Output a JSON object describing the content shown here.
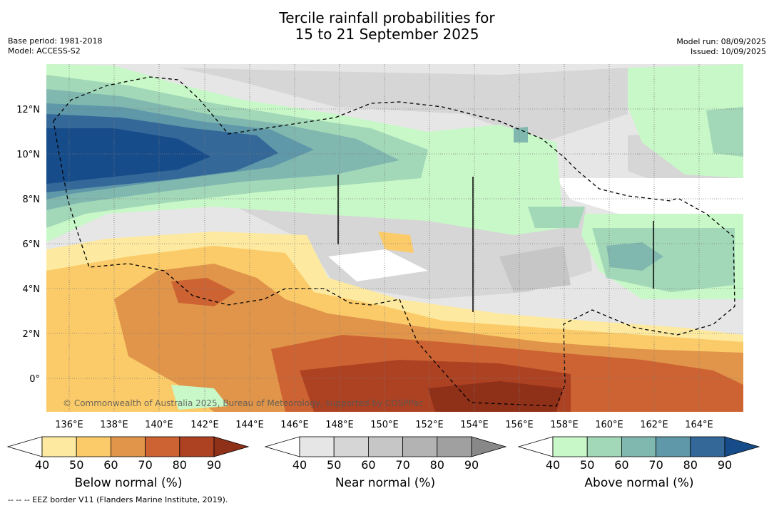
{
  "title": {
    "line1": "Tercile rainfall probabilities for",
    "line2": "15 to 21 September 2025"
  },
  "meta": {
    "base_period": "Base period: 1981-2018",
    "model": "Model: ACCESS-S2",
    "model_run": "Model run: 08/09/2025",
    "issued": "Issued: 10/09/2025"
  },
  "map": {
    "lon_labels": [
      "136°E",
      "138°E",
      "140°E",
      "142°E",
      "144°E",
      "146°E",
      "148°E",
      "150°E",
      "152°E",
      "154°E",
      "156°E",
      "158°E",
      "160°E",
      "162°E",
      "164°E"
    ],
    "lat_labels": [
      "12°N",
      "10°N",
      "8°N",
      "6°N",
      "4°N",
      "2°N",
      "0°"
    ],
    "copyright": "© Commonwealth of Australia 2025, Bureau of Meteorology, supported by COSPPac",
    "colors": {
      "below": [
        "#fdeaa0",
        "#fbcb69",
        "#e0954a",
        "#cd6332",
        "#ad4223",
        "#8f3019"
      ],
      "near": [
        "#e6e6e6",
        "#d6d6d6",
        "#c6c6c6",
        "#b3b3b3",
        "#a0a0a0",
        "#888888"
      ],
      "above": [
        "#c8f8c8",
        "#a2d8b8",
        "#80b8b0",
        "#5f98a8",
        "#336899",
        "#174c8a"
      ]
    }
  },
  "colorbars": {
    "ticks": [
      "40",
      "50",
      "60",
      "70",
      "80",
      "90"
    ],
    "below_label": "Below normal (%)",
    "near_label": "Near normal (%)",
    "above_label": "Above normal (%)"
  },
  "footnote": "--  --  -- EEZ border V11 (Flanders Marine Institute, 2019)."
}
